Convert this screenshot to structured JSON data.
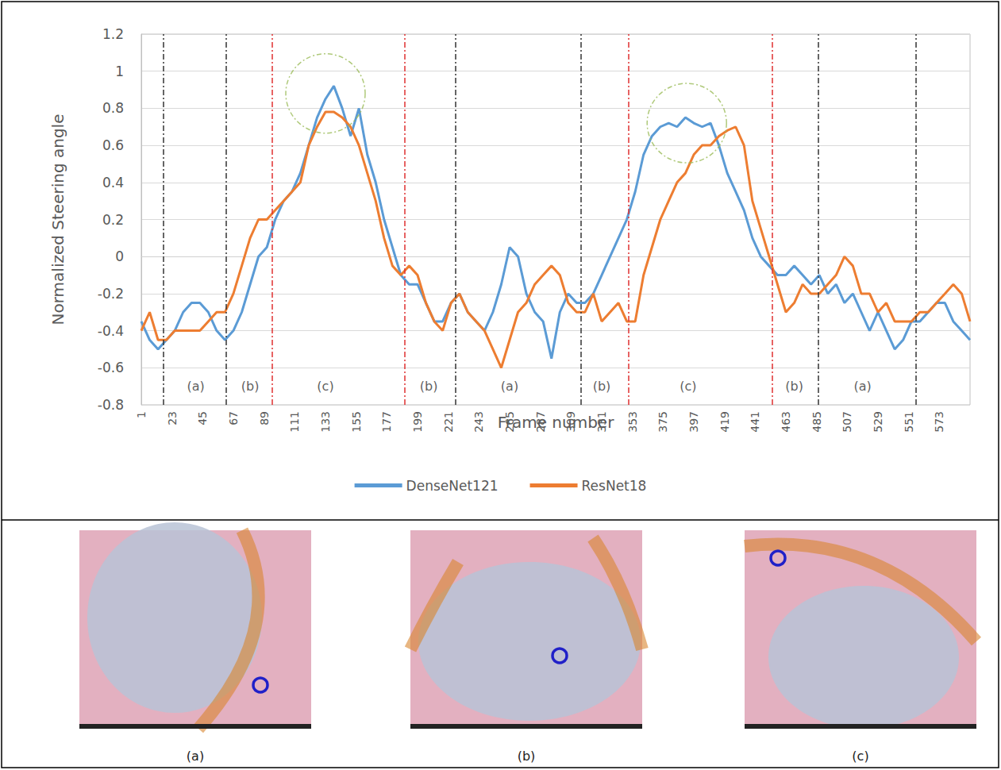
{
  "chart_data": {
    "type": "line",
    "x_label": "Frame number",
    "y_label": "Normalized Steering angle",
    "x": [
      1,
      7,
      13,
      19,
      25,
      31,
      37,
      43,
      49,
      55,
      61,
      67,
      73,
      79,
      85,
      91,
      97,
      103,
      109,
      115,
      121,
      127,
      133,
      139,
      145,
      151,
      157,
      163,
      169,
      175,
      181,
      187,
      193,
      199,
      205,
      211,
      217,
      223,
      229,
      235,
      241,
      247,
      253,
      259,
      265,
      271,
      277,
      283,
      289,
      295,
      301,
      307,
      313,
      319,
      325,
      331,
      337,
      343,
      349,
      355,
      361,
      367,
      373,
      379,
      385,
      391,
      397,
      403,
      409,
      415,
      421,
      427,
      433,
      439,
      445,
      451,
      457,
      463,
      469,
      475,
      481,
      487,
      493,
      499,
      505,
      511,
      517,
      523,
      529,
      535,
      541,
      547,
      553,
      559,
      565,
      571,
      577,
      583,
      589,
      595
    ],
    "series": [
      {
        "name": "DenseNet121",
        "color": "#5b9bd5",
        "values": [
          -0.35,
          -0.45,
          -0.5,
          -0.45,
          -0.4,
          -0.3,
          -0.25,
          -0.25,
          -0.3,
          -0.4,
          -0.45,
          -0.4,
          -0.3,
          -0.15,
          0.0,
          0.05,
          0.2,
          0.3,
          0.35,
          0.45,
          0.6,
          0.75,
          0.85,
          0.92,
          0.8,
          0.65,
          0.8,
          0.55,
          0.4,
          0.2,
          0.05,
          -0.1,
          -0.15,
          -0.15,
          -0.25,
          -0.35,
          -0.35,
          -0.25,
          -0.2,
          -0.3,
          -0.35,
          -0.4,
          -0.3,
          -0.15,
          0.05,
          0.0,
          -0.2,
          -0.3,
          -0.35,
          -0.55,
          -0.3,
          -0.2,
          -0.25,
          -0.25,
          -0.2,
          -0.1,
          0.0,
          0.1,
          0.2,
          0.35,
          0.55,
          0.65,
          0.7,
          0.72,
          0.7,
          0.75,
          0.72,
          0.7,
          0.72,
          0.6,
          0.45,
          0.35,
          0.25,
          0.1,
          0.0,
          -0.05,
          -0.1,
          -0.1,
          -0.05,
          -0.1,
          -0.15,
          -0.1,
          -0.2,
          -0.15,
          -0.25,
          -0.2,
          -0.3,
          -0.4,
          -0.3,
          -0.4,
          -0.5,
          -0.45,
          -0.35,
          -0.35,
          -0.3,
          -0.25,
          -0.25,
          -0.35,
          -0.4,
          -0.45
        ]
      },
      {
        "name": "ResNet18",
        "color": "#ed7d31",
        "values": [
          -0.4,
          -0.3,
          -0.45,
          -0.45,
          -0.4,
          -0.4,
          -0.4,
          -0.4,
          -0.35,
          -0.3,
          -0.3,
          -0.2,
          -0.05,
          0.1,
          0.2,
          0.2,
          0.25,
          0.3,
          0.35,
          0.4,
          0.6,
          0.7,
          0.78,
          0.78,
          0.75,
          0.7,
          0.6,
          0.45,
          0.3,
          0.1,
          -0.05,
          -0.1,
          -0.05,
          -0.1,
          -0.25,
          -0.35,
          -0.4,
          -0.25,
          -0.2,
          -0.3,
          -0.35,
          -0.4,
          -0.5,
          -0.6,
          -0.45,
          -0.3,
          -0.25,
          -0.15,
          -0.1,
          -0.05,
          -0.1,
          -0.25,
          -0.3,
          -0.3,
          -0.2,
          -0.35,
          -0.3,
          -0.25,
          -0.35,
          -0.35,
          -0.1,
          0.05,
          0.2,
          0.3,
          0.4,
          0.45,
          0.55,
          0.6,
          0.6,
          0.65,
          0.68,
          0.7,
          0.6,
          0.3,
          0.15,
          0.0,
          -0.15,
          -0.3,
          -0.25,
          -0.15,
          -0.2,
          -0.2,
          -0.15,
          -0.1,
          0.0,
          -0.05,
          -0.2,
          -0.2,
          -0.3,
          -0.25,
          -0.35,
          -0.35,
          -0.35,
          -0.3,
          -0.3,
          -0.25,
          -0.2,
          -0.15,
          -0.2,
          -0.35
        ]
      }
    ],
    "xlim": [
      1,
      595
    ],
    "xticks": [
      1,
      23,
      45,
      67,
      89,
      111,
      133,
      155,
      177,
      199,
      221,
      243,
      265,
      287,
      309,
      331,
      353,
      375,
      397,
      419,
      441,
      463,
      485,
      507,
      529,
      551,
      573
    ],
    "ylim": [
      -0.8,
      1.2
    ],
    "yticks": [
      -0.8,
      -0.6,
      -0.4,
      -0.2,
      0,
      0.2,
      0.4,
      0.6,
      0.8,
      1,
      1.2
    ],
    "grid": true,
    "legend": "bottom",
    "vertical_lines": [
      {
        "x": 17,
        "color": "#333333"
      },
      {
        "x": 62,
        "color": "#333333"
      },
      {
        "x": 95,
        "color": "#e03030"
      },
      {
        "x": 190,
        "color": "#e03030"
      },
      {
        "x": 226,
        "color": "#333333"
      },
      {
        "x": 316,
        "color": "#333333"
      },
      {
        "x": 350,
        "color": "#e03030"
      },
      {
        "x": 453,
        "color": "#e03030"
      },
      {
        "x": 486,
        "color": "#333333"
      },
      {
        "x": 556,
        "color": "#333333"
      }
    ],
    "regions": [
      {
        "label": "(a)",
        "x": 40,
        "y": -0.7
      },
      {
        "label": "(b)",
        "x": 79,
        "y": -0.7
      },
      {
        "label": "(c)",
        "x": 133,
        "y": -0.7
      },
      {
        "label": "(b)",
        "x": 207,
        "y": -0.7
      },
      {
        "label": "(a)",
        "x": 265,
        "y": -0.7
      },
      {
        "label": "(b)",
        "x": 331,
        "y": -0.7
      },
      {
        "label": "(c)",
        "x": 393,
        "y": -0.7
      },
      {
        "label": "(b)",
        "x": 469,
        "y": -0.7
      },
      {
        "label": "(a)",
        "x": 518,
        "y": -0.7
      }
    ],
    "highlights": [
      {
        "x": 133,
        "y": 0.88
      },
      {
        "x": 392,
        "y": 0.72
      }
    ]
  },
  "image_captions": [
    "(a)",
    "(b)",
    "(c)"
  ]
}
